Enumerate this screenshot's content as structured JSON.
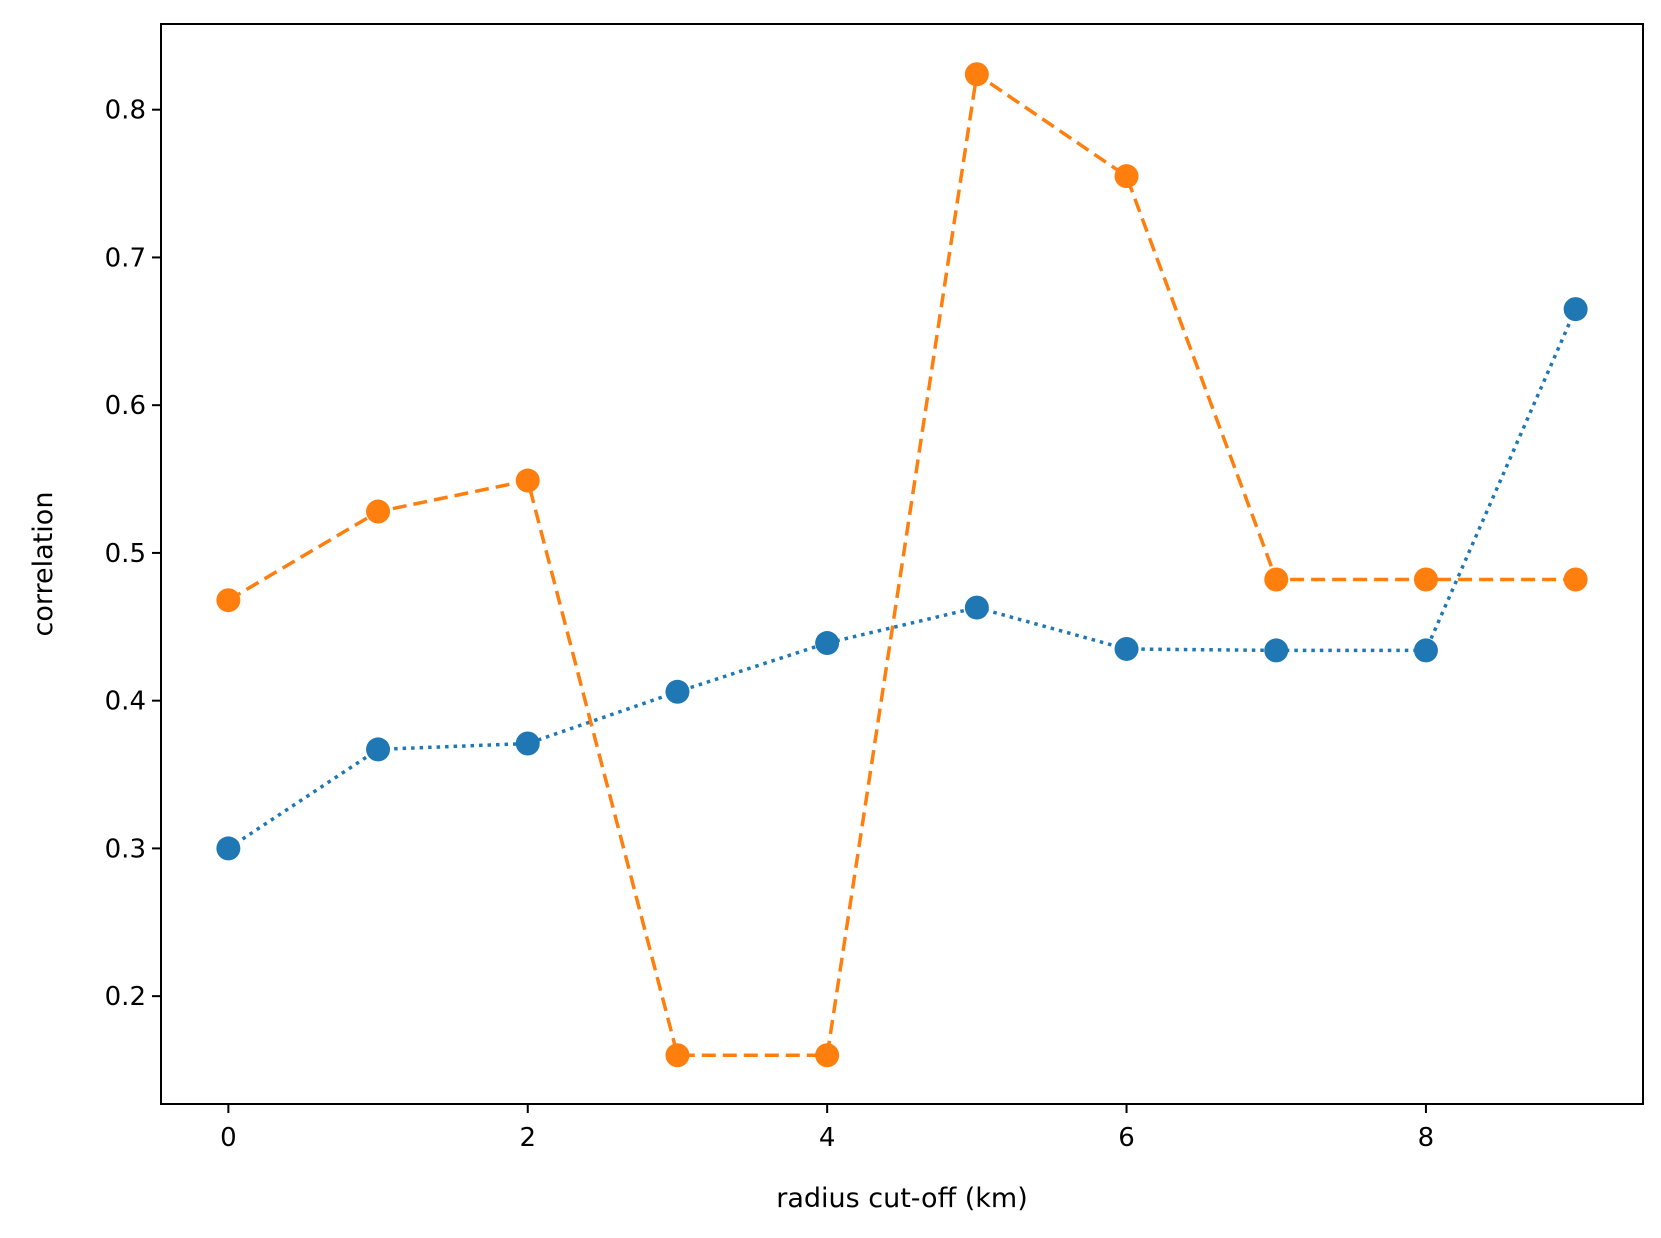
{
  "chart_data": {
    "type": "line",
    "title": "",
    "xlabel": "radius cut-off (km)",
    "ylabel": "correlation",
    "xlim": [
      -0.45,
      9.45
    ],
    "ylim": [
      0.127,
      0.858
    ],
    "grid": false,
    "x": [
      0,
      1,
      2,
      3,
      4,
      5,
      6,
      7,
      8,
      9
    ],
    "x_ticks": [
      0,
      2,
      4,
      6,
      8
    ],
    "y_ticks": [
      0.2,
      0.3,
      0.4,
      0.5,
      0.6,
      0.7,
      0.8
    ],
    "series": [
      {
        "color": "#1f77b4",
        "line_style": "dotted",
        "marker": "circle",
        "values": [
          0.3,
          0.367,
          0.371,
          0.406,
          0.439,
          0.463,
          0.435,
          0.434,
          0.434,
          0.665
        ]
      },
      {
        "color": "#ff7f0e",
        "line_style": "dashed",
        "marker": "circle",
        "values": [
          0.468,
          0.528,
          0.549,
          0.16,
          0.16,
          0.824,
          0.755,
          0.482,
          0.482,
          0.482
        ]
      }
    ]
  }
}
